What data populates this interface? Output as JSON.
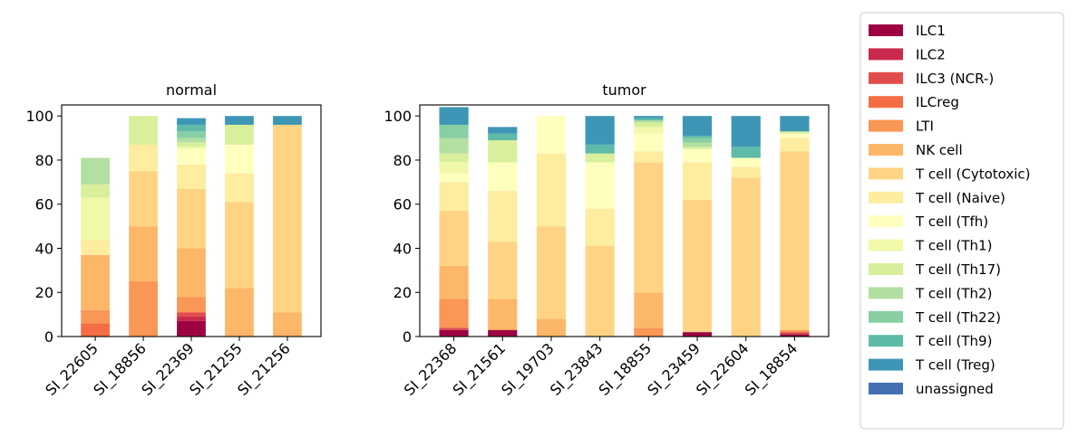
{
  "chart_data": {
    "type": "bar",
    "stacked": true,
    "ylim": [
      0,
      105
    ],
    "yticks": [
      0,
      20,
      40,
      60,
      80,
      100
    ],
    "legend_position": "outside-right",
    "cell_types": [
      {
        "name": "ILC1",
        "color": "#9e0142"
      },
      {
        "name": "ILC2",
        "color": "#c9294d"
      },
      {
        "name": "ILC3 (NCR-)",
        "color": "#e14d4a"
      },
      {
        "name": "ILCreg",
        "color": "#f46d43"
      },
      {
        "name": "LTI",
        "color": "#fa9656"
      },
      {
        "name": "NK cell",
        "color": "#fdb768"
      },
      {
        "name": "T cell (Cytotoxic)",
        "color": "#fed484"
      },
      {
        "name": "T cell (Naive)",
        "color": "#feec9f"
      },
      {
        "name": "T cell (Tfh)",
        "color": "#ffffbe"
      },
      {
        "name": "T cell (Th1)",
        "color": "#f1f9a9"
      },
      {
        "name": "T cell (Th17)",
        "color": "#d8ef9b"
      },
      {
        "name": "T cell (Th2)",
        "color": "#b2e0a2"
      },
      {
        "name": "T cell (Th22)",
        "color": "#88cfa4"
      },
      {
        "name": "T cell (Th9)",
        "color": "#5fbaa8"
      },
      {
        "name": "T cell (Treg)",
        "color": "#3e96b6"
      },
      {
        "name": "unassigned",
        "color": "#4470b1"
      }
    ],
    "panels": [
      {
        "title": "normal",
        "categories": [
          "SI_22605",
          "SI_18856",
          "SI_22369",
          "SI_21255",
          "SI_21256"
        ],
        "values": [
          [
            0,
            0,
            0,
            6,
            6,
            25,
            0,
            7,
            0,
            19,
            6,
            12,
            0,
            0,
            0,
            0
          ],
          [
            0,
            0,
            0,
            0,
            25,
            25,
            25,
            12,
            0,
            0,
            13,
            0,
            0,
            0,
            0,
            0
          ],
          [
            7,
            2,
            2,
            0,
            7,
            22,
            27,
            11,
            7,
            1,
            2,
            2,
            3,
            3,
            3,
            0
          ],
          [
            0,
            0,
            0,
            0,
            0,
            22,
            39,
            13,
            13,
            0,
            9,
            0,
            0,
            0,
            4,
            0
          ],
          [
            0,
            0,
            0,
            0,
            0,
            11,
            85,
            0,
            0,
            0,
            0,
            0,
            0,
            0,
            4,
            0
          ]
        ]
      },
      {
        "title": "tumor",
        "categories": [
          "SI_22368",
          "SI_21561",
          "SI_19703",
          "SI_23843",
          "SI_18855",
          "SI_23459",
          "SI_22604",
          "SI_18854"
        ],
        "values": [
          [
            3,
            0,
            1,
            0,
            13,
            15,
            25,
            13,
            4,
            5,
            4,
            7,
            6,
            0,
            8,
            0
          ],
          [
            3,
            0,
            0,
            0,
            0,
            14,
            26,
            23,
            13,
            0,
            10,
            0,
            0,
            3,
            3,
            0
          ],
          [
            0,
            0,
            0,
            0,
            0,
            8,
            42,
            33,
            17,
            0,
            0,
            0,
            0,
            0,
            0,
            0
          ],
          [
            0,
            0,
            0,
            0,
            0,
            0,
            41,
            17,
            21,
            0,
            4,
            0,
            0,
            4,
            13,
            0
          ],
          [
            0,
            0,
            0,
            0,
            4,
            16,
            59,
            5,
            8,
            3,
            2,
            1,
            0,
            1,
            1,
            0
          ],
          [
            2,
            0,
            0,
            0,
            0,
            0,
            60,
            17,
            6,
            0,
            1,
            2,
            2,
            1,
            9,
            0
          ],
          [
            0,
            0,
            0,
            0,
            0,
            0,
            72,
            5,
            4,
            0,
            0,
            0,
            0,
            5,
            14,
            0
          ],
          [
            1,
            0,
            1,
            0,
            1,
            0,
            81,
            6,
            2,
            0,
            1,
            0,
            0,
            0,
            7,
            0
          ]
        ]
      }
    ]
  }
}
